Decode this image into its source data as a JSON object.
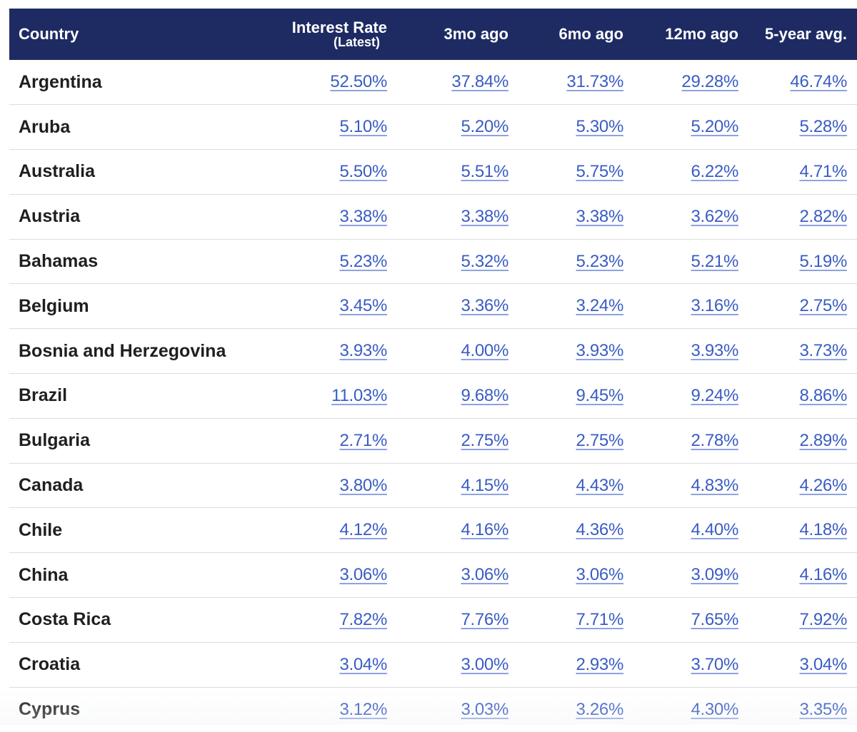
{
  "table": {
    "headers": {
      "country": "Country",
      "interest_rate": "Interest Rate",
      "interest_rate_sub": "(Latest)",
      "three_mo": "3mo ago",
      "six_mo": "6mo ago",
      "twelve_mo": "12mo ago",
      "five_year": "5-year avg."
    },
    "rows": [
      {
        "country": "Argentina",
        "latest": "52.50%",
        "m3": "37.84%",
        "m6": "31.73%",
        "m12": "29.28%",
        "y5": "46.74%"
      },
      {
        "country": "Aruba",
        "latest": "5.10%",
        "m3": "5.20%",
        "m6": "5.30%",
        "m12": "5.20%",
        "y5": "5.28%"
      },
      {
        "country": "Australia",
        "latest": "5.50%",
        "m3": "5.51%",
        "m6": "5.75%",
        "m12": "6.22%",
        "y5": "4.71%"
      },
      {
        "country": "Austria",
        "latest": "3.38%",
        "m3": "3.38%",
        "m6": "3.38%",
        "m12": "3.62%",
        "y5": "2.82%"
      },
      {
        "country": "Bahamas",
        "latest": "5.23%",
        "m3": "5.32%",
        "m6": "5.23%",
        "m12": "5.21%",
        "y5": "5.19%"
      },
      {
        "country": "Belgium",
        "latest": "3.45%",
        "m3": "3.36%",
        "m6": "3.24%",
        "m12": "3.16%",
        "y5": "2.75%"
      },
      {
        "country": "Bosnia and Herzegovina",
        "latest": "3.93%",
        "m3": "4.00%",
        "m6": "3.93%",
        "m12": "3.93%",
        "y5": "3.73%"
      },
      {
        "country": "Brazil",
        "latest": "11.03%",
        "m3": "9.68%",
        "m6": "9.45%",
        "m12": "9.24%",
        "y5": "8.86%"
      },
      {
        "country": "Bulgaria",
        "latest": "2.71%",
        "m3": "2.75%",
        "m6": "2.75%",
        "m12": "2.78%",
        "y5": "2.89%"
      },
      {
        "country": "Canada",
        "latest": "3.80%",
        "m3": "4.15%",
        "m6": "4.43%",
        "m12": "4.83%",
        "y5": "4.26%"
      },
      {
        "country": "Chile",
        "latest": "4.12%",
        "m3": "4.16%",
        "m6": "4.36%",
        "m12": "4.40%",
        "y5": "4.18%"
      },
      {
        "country": "China",
        "latest": "3.06%",
        "m3": "3.06%",
        "m6": "3.06%",
        "m12": "3.09%",
        "y5": "4.16%"
      },
      {
        "country": "Costa Rica",
        "latest": "7.82%",
        "m3": "7.76%",
        "m6": "7.71%",
        "m12": "7.65%",
        "y5": "7.92%"
      },
      {
        "country": "Croatia",
        "latest": "3.04%",
        "m3": "3.00%",
        "m6": "2.93%",
        "m12": "3.70%",
        "y5": "3.04%"
      },
      {
        "country": "Cyprus",
        "latest": "3.12%",
        "m3": "3.03%",
        "m6": "3.26%",
        "m12": "4.30%",
        "y5": "3.35%"
      }
    ]
  },
  "colors": {
    "header_bg": "#1e2b63",
    "link_blue": "#3a5cc4",
    "row_divider": "#dadde3"
  }
}
